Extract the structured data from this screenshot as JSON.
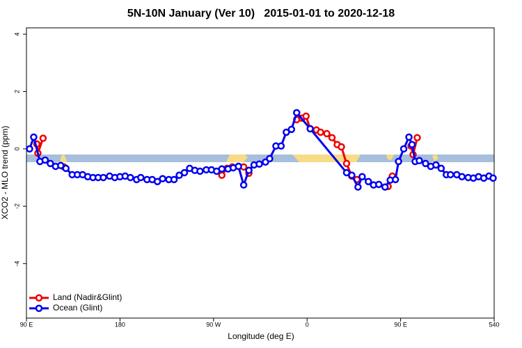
{
  "chart_data": {
    "type": "line",
    "title": "5N-10N January (Ver 10)   2015-01-01 to 2020-12-18",
    "x_label": "Longitude (deg E)",
    "y_label": "XCO2 - MLO trend (ppm)",
    "xlim": [
      90,
      540
    ],
    "xticks": [
      {
        "value": 90,
        "label": "90 E"
      },
      180,
      {
        "value": 270,
        "label": "90 W"
      },
      {
        "value": 360,
        "label": "0"
      },
      {
        "value": 450,
        "label": "90 E"
      },
      540
    ],
    "ylim": [
      -5.9,
      4.22
    ],
    "yticks": [
      -4,
      -2,
      0,
      2,
      4
    ],
    "legend": "lower left",
    "series": [
      {
        "name": "Land (Nadir&Glint)",
        "color": "#ee0000",
        "x": [
          100,
          101,
          106,
          null,
          126,
          null,
          278,
          283,
          288,
          294,
          299,
          304,
          null,
          350,
          355,
          359,
          363,
          369,
          373,
          379,
          384,
          389,
          393,
          398,
          403,
          408,
          null,
          438,
          442,
          null,
          460,
          462,
          466,
          null,
          484
        ],
        "values": [
          0.17,
          -0.15,
          0.37,
          null,
          -0.63,
          null,
          -0.92,
          -0.68,
          -0.63,
          -0.61,
          -0.63,
          -0.85,
          null,
          1.02,
          1.07,
          1.14,
          0.7,
          0.66,
          0.58,
          0.53,
          0.39,
          0.15,
          0.07,
          -0.51,
          -0.95,
          -1.07,
          null,
          -1.31,
          -0.95,
          null,
          0.1,
          -0.2,
          0.39,
          null,
          -0.56
        ]
      },
      {
        "name": "Ocean (Glint)",
        "color": "#0000ee",
        "x": [
          93,
          97,
          103,
          108,
          113,
          118,
          123,
          128,
          134,
          139,
          144,
          149,
          154,
          159,
          164,
          170,
          175,
          180,
          185,
          190,
          196,
          200,
          206,
          211,
          216,
          221,
          227,
          232,
          237,
          242,
          247,
          252,
          257,
          263,
          268,
          273,
          278,
          284,
          289,
          294,
          299,
          304,
          309,
          314,
          320,
          324,
          330,
          335,
          340,
          345,
          350,
          363,
          398,
          403,
          409,
          413,
          419,
          424,
          429,
          435,
          440,
          445,
          448,
          453,
          458,
          461,
          464,
          468,
          474,
          479,
          484,
          489,
          494,
          498,
          504,
          509,
          515,
          520,
          525,
          530,
          535,
          539
        ],
        "values": [
          0,
          0.41,
          -0.44,
          -0.39,
          -0.51,
          -0.61,
          -0.58,
          -0.68,
          -0.9,
          -0.9,
          -0.9,
          -0.97,
          -1.0,
          -1.0,
          -1.0,
          -0.95,
          -1.0,
          -0.97,
          -0.95,
          -1.0,
          -1.07,
          -1.0,
          -1.07,
          -1.07,
          -1.14,
          -1.04,
          -1.07,
          -1.07,
          -0.92,
          -0.83,
          -0.68,
          -0.75,
          -0.78,
          -0.73,
          -0.73,
          -0.78,
          -0.7,
          -0.7,
          -0.66,
          -0.61,
          -1.26,
          -0.75,
          -0.56,
          -0.53,
          -0.46,
          -0.34,
          0.1,
          0.1,
          0.58,
          0.68,
          1.26,
          0.7,
          -0.83,
          -0.92,
          -1.33,
          -0.97,
          -1.14,
          -1.26,
          -1.24,
          -1.33,
          -1.09,
          -1.07,
          -0.44,
          0,
          0.41,
          0.15,
          -0.44,
          -0.41,
          -0.51,
          -0.61,
          -0.56,
          -0.68,
          -0.9,
          -0.9,
          -0.9,
          -0.97,
          -1.0,
          -1.02,
          -0.97,
          -1.02,
          -0.95,
          -1.02
        ]
      }
    ]
  }
}
